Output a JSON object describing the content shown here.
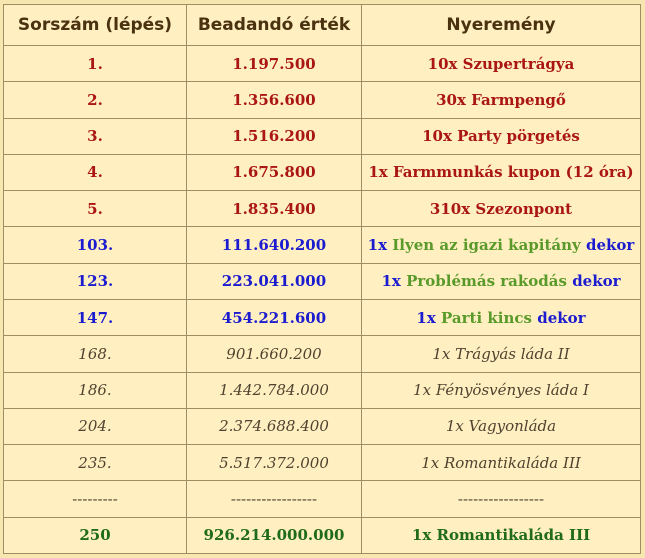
{
  "headers": [
    "Sorszám (lépés)",
    "Beadandó érték",
    "Nyeremény"
  ],
  "rows_red": [
    {
      "step": "1.",
      "value": "1.197.500",
      "prize": "10x Szupertrágya"
    },
    {
      "step": "2.",
      "value": "1.356.600",
      "prize": "30x Farmpengő"
    },
    {
      "step": "3.",
      "value": "1.516.200",
      "prize": "10x Party pörgetés"
    },
    {
      "step": "4.",
      "value": "1.675.800",
      "prize": "1x Farmmunkás kupon (12 óra)"
    },
    {
      "step": "5.",
      "value": "1.835.400",
      "prize": "310x Szezonpont"
    }
  ],
  "rows_blue": [
    {
      "step": "103.",
      "value": "111.640.200",
      "qty": "1x",
      "name": "Ilyen az igazi kapitány",
      "suffix": "dekor"
    },
    {
      "step": "123.",
      "value": "223.041.000",
      "qty": "1x",
      "name": "Problémás rakodás",
      "suffix": "dekor"
    },
    {
      "step": "147.",
      "value": "454.221.600",
      "qty": "1x",
      "name": "Parti kincs",
      "suffix": "dekor"
    }
  ],
  "rows_grey": [
    {
      "step": "168.",
      "value": "901.660.200",
      "prize": "1x Trágyás láda II"
    },
    {
      "step": "186.",
      "value": "1.442.784.000",
      "prize": "1x Fényösvényes láda I"
    },
    {
      "step": "204.",
      "value": "2.374.688.400",
      "prize": "1x Vagyonláda"
    },
    {
      "step": "235.",
      "value": "5.517.372.000",
      "prize": "1x Romantikaláda III"
    }
  ],
  "row_dash": {
    "step": "---------",
    "value": "-----------------",
    "prize": "-----------------"
  },
  "row_final": {
    "step": "250",
    "value": "926.214.000.000",
    "prize": "1x Romantikaláda III"
  },
  "colors": {
    "background": "#ffefc1",
    "border": "#a08d62",
    "header_text": "#4a3210",
    "red": "#aa1612",
    "blue": "#1b1bcf",
    "green_highlight": "#5a9a2a",
    "grey_italic": "#4f4330",
    "final_green": "#1f6b18"
  }
}
